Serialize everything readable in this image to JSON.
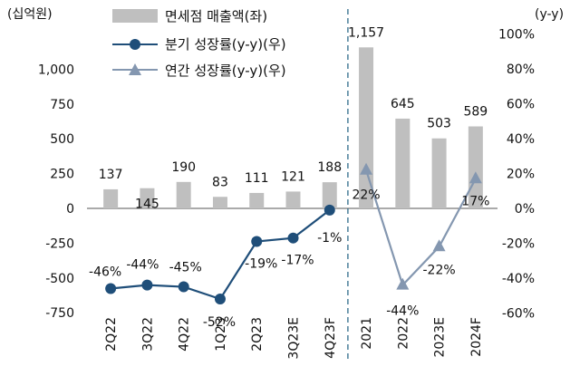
{
  "chart_data": {
    "type": "bar",
    "left_axis_unit": "(십억원)",
    "right_axis_unit": "(y-y)",
    "categories": [
      "2Q22",
      "3Q22",
      "4Q22",
      "1Q23",
      "2Q23",
      "3Q23E",
      "4Q23F",
      "2021",
      "2022",
      "2023E",
      "2024F"
    ],
    "y_left_ticks": [
      "1,000",
      "750",
      "500",
      "250",
      "0",
      "-250",
      "-500",
      "-750"
    ],
    "y_right_ticks": [
      "100%",
      "80%",
      "60%",
      "40%",
      "20%",
      "0%",
      "-20%",
      "-40%",
      "-60%"
    ],
    "ylim_left": [
      -750,
      1200
    ],
    "ylim_right": [
      -60,
      100
    ],
    "legend_placement": "top",
    "series": [
      {
        "name": "면세점 매출액(좌)",
        "type": "bar",
        "axis": "left",
        "color": "#bfbfbf",
        "values": [
          137,
          145,
          190,
          83,
          111,
          121,
          188,
          1157,
          645,
          503,
          589
        ],
        "labels": [
          "137",
          "145",
          "190",
          "83",
          "111",
          "121",
          "188",
          "1,157",
          "645",
          "503",
          "589"
        ]
      },
      {
        "name": "분기 성장률(y-y)(우)",
        "type": "line",
        "axis": "right",
        "marker": "circle",
        "color": "#1f4e79",
        "x": [
          "2Q22",
          "3Q22",
          "4Q22",
          "1Q23",
          "2Q23",
          "3Q23E",
          "4Q23F"
        ],
        "values": [
          -46,
          -44,
          -45,
          -52,
          -19,
          -17,
          -1
        ],
        "labels": [
          "-46%",
          "-44%",
          "-45%",
          "-52%",
          "-19%",
          "-17%",
          "-1%"
        ]
      },
      {
        "name": "연간 성장률(y-y)(우)",
        "type": "line",
        "axis": "right",
        "marker": "triangle",
        "color": "#8497b0",
        "x": [
          "2021",
          "2022",
          "2023E",
          "2024F"
        ],
        "values": [
          22,
          -44,
          -22,
          17
        ],
        "labels": [
          "22%",
          "-44%",
          "-22%",
          "17%"
        ]
      }
    ]
  }
}
